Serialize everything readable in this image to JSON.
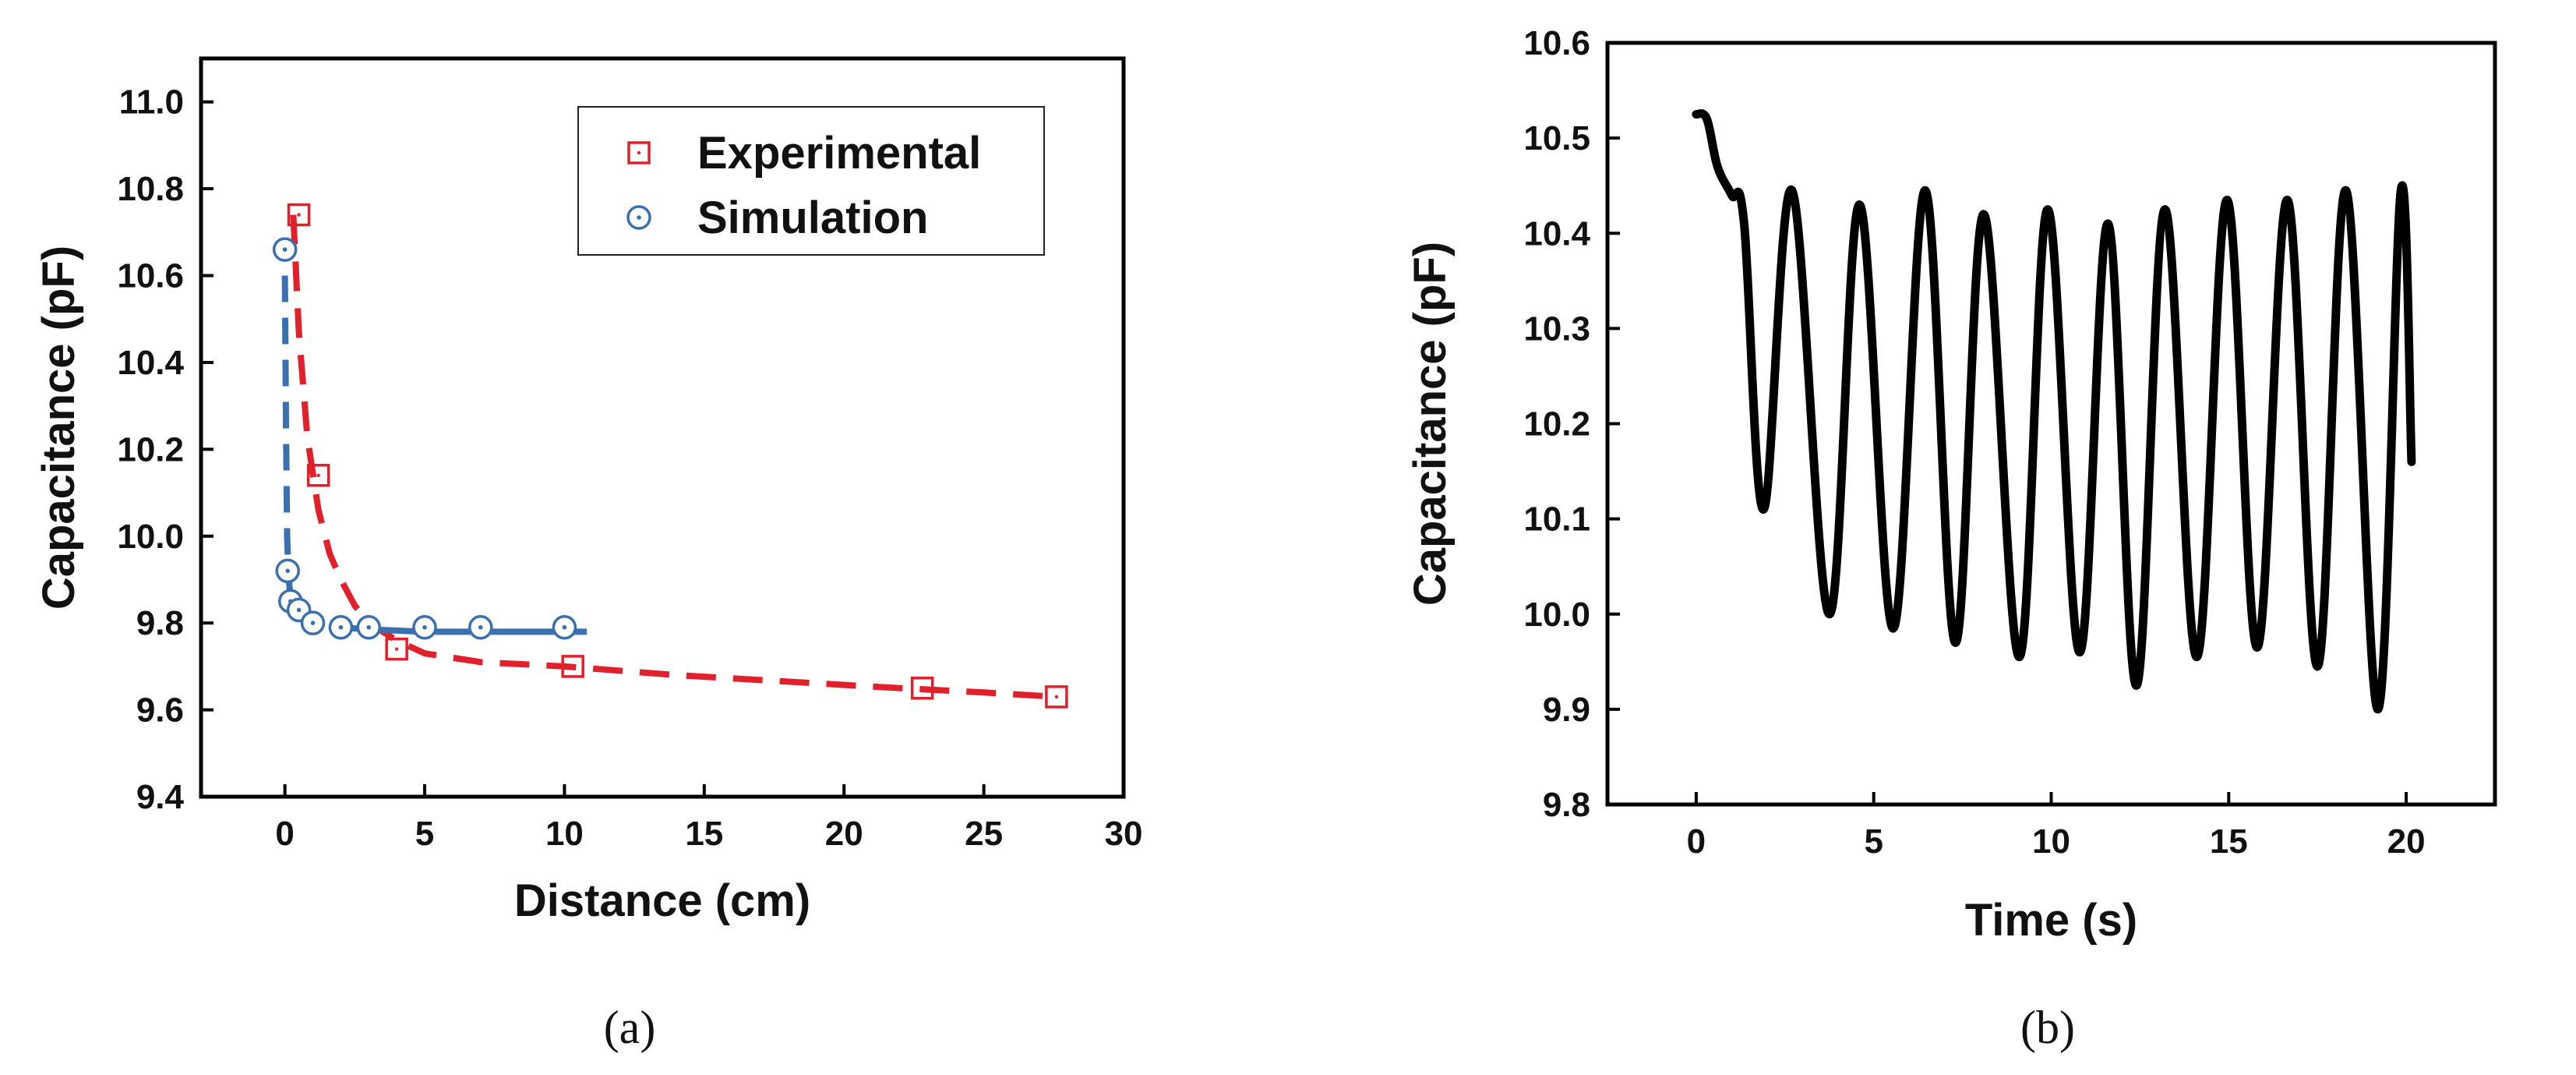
{
  "chart_data": [
    {
      "type": "scatter",
      "panel_label": "(a)",
      "xlabel": "Distance (cm)",
      "ylabel": "Capacitance (pF)",
      "xlim": [
        -3,
        30
      ],
      "ylim": [
        9.4,
        11.1
      ],
      "xticks": [
        0,
        5,
        10,
        15,
        20,
        25,
        30
      ],
      "yticks": [
        9.4,
        9.6,
        9.8,
        10.0,
        10.2,
        10.4,
        10.6,
        10.8,
        11.0
      ],
      "ytick_labels": [
        "9.4",
        "9.6",
        "9.8",
        "10.0",
        "10.2",
        "10.4",
        "10.6",
        "10.8",
        "11.0"
      ],
      "legend_position": "top-right",
      "series": [
        {
          "name": "Experimental",
          "marker": "square",
          "color": "#e0202a",
          "points": [
            [
              0.5,
              10.74
            ],
            [
              1.2,
              10.14
            ],
            [
              4.0,
              9.74
            ],
            [
              10.3,
              9.7
            ],
            [
              22.8,
              9.65
            ],
            [
              27.6,
              9.63
            ]
          ],
          "fit": {
            "style": "dashed",
            "x": [
              0.3,
              0.5,
              0.8,
              1.2,
              1.6,
              2.0,
              2.5,
              3.0,
              4.0,
              5.0,
              7.0,
              10.0,
              14.0,
              18.0,
              22.0,
              25.0,
              27.6
            ],
            "y": [
              10.74,
              10.47,
              10.23,
              10.06,
              9.96,
              9.9,
              9.84,
              9.8,
              9.76,
              9.73,
              9.71,
              9.7,
              9.68,
              9.665,
              9.65,
              9.64,
              9.63
            ]
          }
        },
        {
          "name": "Simulation",
          "marker": "circle-dot",
          "color": "#3a6fb0",
          "points": [
            [
              0.0,
              10.66
            ],
            [
              0.1,
              9.92
            ],
            [
              0.2,
              9.85
            ],
            [
              0.5,
              9.83
            ],
            [
              1.0,
              9.8
            ],
            [
              2.0,
              9.79
            ],
            [
              3.0,
              9.79
            ],
            [
              5.0,
              9.79
            ],
            [
              7.0,
              9.79
            ],
            [
              10.0,
              9.79
            ]
          ],
          "fit": {
            "style": "dashed-then-solid",
            "x": [
              0.0,
              0.04,
              0.08,
              0.12,
              0.18,
              0.3,
              0.5,
              0.8,
              1.2,
              2.0,
              3.0,
              5.0,
              7.0,
              10.0,
              10.8
            ],
            "y": [
              10.6,
              10.25,
              10.0,
              9.92,
              9.87,
              9.84,
              9.82,
              9.81,
              9.8,
              9.79,
              9.785,
              9.78,
              9.78,
              9.78,
              9.78
            ]
          }
        }
      ]
    },
    {
      "type": "line",
      "panel_label": "(b)",
      "xlabel": "Time (s)",
      "ylabel": "Capacitance (pF)",
      "xlim": [
        -2.5,
        22.5
      ],
      "ylim": [
        9.8,
        10.6
      ],
      "xticks": [
        0,
        5,
        10,
        15,
        20
      ],
      "yticks": [
        9.8,
        9.9,
        10.0,
        10.1,
        10.2,
        10.3,
        10.4,
        10.5,
        10.6
      ],
      "ytick_labels": [
        "9.8",
        "9.9",
        "10.0",
        "10.1",
        "10.2",
        "10.3",
        "10.4",
        "10.5",
        "10.6"
      ],
      "series": [
        {
          "name": "capacitance",
          "color": "#000000",
          "x": [
            0.0,
            0.3,
            0.6,
            1.0,
            1.35,
            1.9,
            2.7,
            3.75,
            4.6,
            5.55,
            6.45,
            7.3,
            8.1,
            9.1,
            9.9,
            10.8,
            11.6,
            12.4,
            13.2,
            14.1,
            14.95,
            15.8,
            16.65,
            17.5,
            18.3,
            19.2,
            19.85,
            20.15
          ],
          "y": [
            10.525,
            10.52,
            10.47,
            10.44,
            10.41,
            10.11,
            10.445,
            10.0,
            10.43,
            9.985,
            10.445,
            9.97,
            10.42,
            9.955,
            10.425,
            9.96,
            10.41,
            9.925,
            10.425,
            9.955,
            10.435,
            9.965,
            10.435,
            9.945,
            10.445,
            9.9,
            10.445,
            10.16
          ]
        }
      ]
    }
  ]
}
